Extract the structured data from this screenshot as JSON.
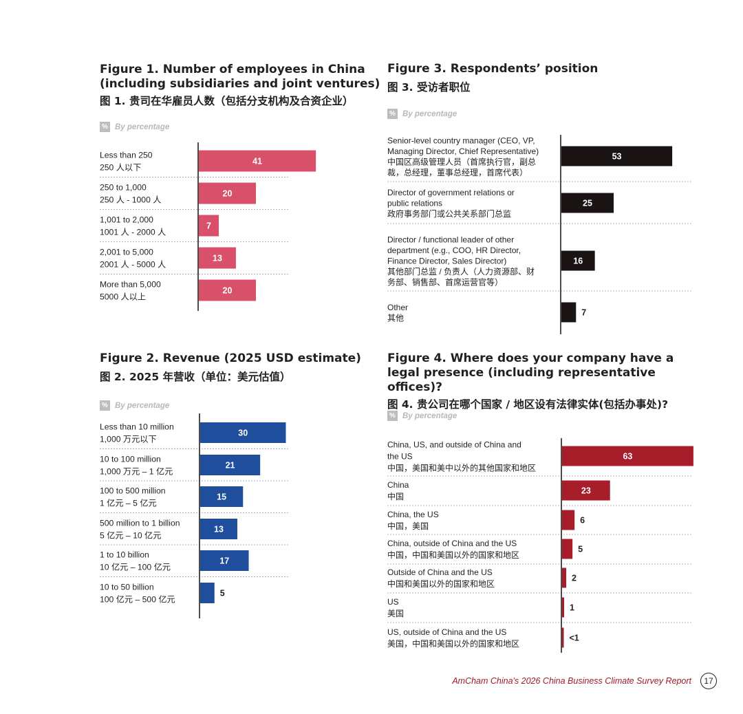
{
  "figures": {
    "fig1": {
      "title": "Figure 1. Number of employees in China (including subsidiaries and joint ventures)",
      "title_cn": "图 1. 贵司在华雇员人数（包括分支机构及合资企业）",
      "unit_note": "By percentage",
      "color": "#d85069"
    },
    "fig2": {
      "title": "Figure 2. Revenue (2025 USD estimate)",
      "title_cn": "图 2. 2025 年营收（单位：美元估值）",
      "unit_note": "By percentage",
      "color": "#1f4e9c"
    },
    "fig3": {
      "title": "Figure 3. Respondents’ position",
      "title_cn": "图 3. 受访者职位",
      "unit_note": "By percentage",
      "color": "#1a1414"
    },
    "fig4": {
      "title": "Figure 4. Where does your company have a legal presence (including representative offices)?",
      "title_cn": "图 4. 贵公司在哪个国家 / 地区设有法律实体(包括办事处)?",
      "unit_note": "By percentage",
      "color": "#a71d2a"
    }
  },
  "pct_symbol": "%",
  "chart_data": [
    {
      "id": "fig1",
      "type": "bar",
      "orientation": "horizontal",
      "categories": [
        [
          "Less than 250",
          "250 人以下"
        ],
        [
          "250 to 1,000",
          "250 人 - 1000 人"
        ],
        [
          "1,001 to 2,000",
          "1001 人 - 2000 人"
        ],
        [
          "2,001 to 5,000",
          "2001 人 - 5000 人"
        ],
        [
          "More than 5,000",
          "5000 人以上"
        ]
      ],
      "values": [
        41,
        20,
        7,
        13,
        20
      ],
      "labels": [
        "41",
        "20",
        "7",
        "13",
        "20"
      ]
    },
    {
      "id": "fig2",
      "type": "bar",
      "orientation": "horizontal",
      "categories": [
        [
          "Less than 10 million",
          "1,000 万元以下"
        ],
        [
          "10 to 100 million",
          "1,000 万元 – 1 亿元"
        ],
        [
          "100 to 500 million",
          "1 亿元 – 5 亿元"
        ],
        [
          "500 million to 1 billion",
          "5 亿元 – 10 亿元"
        ],
        [
          "1 to 10 billion",
          "10 亿元 – 100 亿元"
        ],
        [
          "10 to 50 billion",
          "100 亿元 – 500 亿元"
        ]
      ],
      "values": [
        30,
        21,
        15,
        13,
        17,
        5
      ],
      "labels": [
        "30",
        "21",
        "15",
        "13",
        "17",
        "5"
      ]
    },
    {
      "id": "fig3",
      "type": "bar",
      "orientation": "horizontal",
      "categories": [
        [
          "Senior-level country manager (CEO, VP,",
          "Managing Director, Chief Representative)",
          "中国区高级管理人员（首席执行官，副总",
          "裁，总经理，董事总经理，首席代表）"
        ],
        [
          "Director of government relations or",
          "public relations",
          "政府事务部门或公共关系部门总监"
        ],
        [
          "Director / functional leader of other",
          "department (e.g., COO, HR Director,",
          "Finance Director, Sales Director)",
          "其他部门总监 / 负责人（人力资源部、财",
          "务部、销售部、首席运营官等）"
        ],
        [
          "Other",
          "其他"
        ]
      ],
      "values": [
        53,
        25,
        16,
        7
      ],
      "labels": [
        "53",
        "25",
        "16",
        "7"
      ]
    },
    {
      "id": "fig4",
      "type": "bar",
      "orientation": "horizontal",
      "categories": [
        [
          "China, US, and outside of China and",
          "the US",
          "中国，美国和美中以外的其他国家和地区"
        ],
        [
          "China",
          "中国"
        ],
        [
          "China, the US",
          "中国，美国"
        ],
        [
          "China, outside of China and the US",
          "中国，中国和美国以外的国家和地区"
        ],
        [
          "Outside of China and the US",
          "中国和美国以外的国家和地区"
        ],
        [
          "US",
          "美国"
        ],
        [
          "US, outside of China and the US",
          "美国，中国和美国以外的国家和地区"
        ]
      ],
      "values": [
        63,
        23,
        6,
        5,
        2,
        1,
        0.4
      ],
      "labels": [
        "63",
        "23",
        "6",
        "5",
        "2",
        "1",
        "<1"
      ]
    }
  ],
  "footer": {
    "report": "AmCham China's 2026 China Business Climate Survey Report",
    "page": "17"
  }
}
